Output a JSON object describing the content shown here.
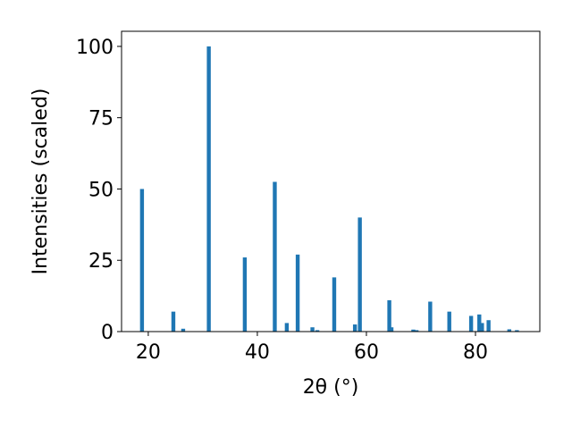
{
  "chart_data": {
    "type": "bar",
    "xlabel": "2θ (°)",
    "ylabel": "Intensities (scaled)",
    "color": "#1f77b4",
    "x": [
      18.85,
      24.6,
      26.4,
      31.1,
      37.7,
      43.2,
      45.4,
      47.4,
      50.1,
      51.0,
      54.1,
      57.9,
      58.8,
      64.2,
      64.6,
      68.6,
      69.2,
      71.7,
      75.2,
      79.2,
      80.7,
      81.2,
      82.4,
      86.2,
      87.6
    ],
    "values": [
      50,
      7,
      1,
      100,
      26,
      52.5,
      3,
      27,
      1.5,
      0.5,
      19,
      2.5,
      40,
      11,
      1.5,
      0.7,
      0.5,
      10.5,
      7,
      5.5,
      6,
      3,
      4,
      0.8,
      0.5
    ],
    "xlim": [
      15.1,
      91.8
    ],
    "xticks": [
      20,
      40,
      60,
      80
    ],
    "ylim": [
      0,
      105.3
    ],
    "yticks": [
      0,
      25,
      50,
      75,
      100
    ]
  }
}
